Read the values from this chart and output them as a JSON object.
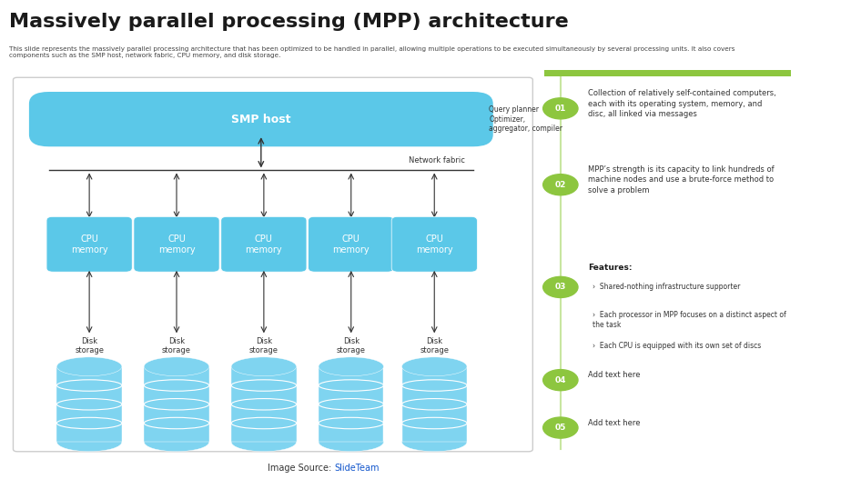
{
  "title": "Massively parallel processing (MPP) architecture",
  "subtitle": "This slide represents the massively parallel processing architecture that has been optimized to be handled in parallel, allowing multiple operations to be executed simultaneously by several processing units. It also covers\ncomponents such as the SMP host, network fabric, CPU memory, and disk storage.",
  "bg_color": "#ffffff",
  "diagram_border": "#cccccc",
  "smp_color": "#5bc8e8",
  "cpu_color": "#5bc8e8",
  "disk_color": "#7fd4f0",
  "arrow_color": "#333333",
  "title_color": "#1a1a1a",
  "subtitle_color": "#444444",
  "right_panel_line_color": "#8dc63f",
  "circle_bg": "#8dc63f",
  "circle_text_color": "#ffffff",
  "items": [
    {
      "num": "01",
      "text": "Collection of relatively self-contained computers,\neach with its operating system, memory, and\ndisc, all linked via messages"
    },
    {
      "num": "02",
      "text": "MPP’s strength is its capacity to link hundreds of\nmachine nodes and use a brute-force method to\nsolve a problem"
    },
    {
      "num": "03",
      "text_bold": "Features:",
      "bullets": [
        "Shared-nothing infrastructure supporter",
        "Each processor in MPP focuses on a distinct aspect of\nthe task",
        "Each CPU is equipped with its own set of discs"
      ]
    },
    {
      "num": "04",
      "text": "Add text here"
    },
    {
      "num": "05",
      "text": "Add text here"
    }
  ],
  "query_planner_text": "Query planner\nOptimizer,\naggregator, compiler",
  "network_fabric_text": "Network fabric",
  "image_source_text": "Image Source: ",
  "image_source_link": "SlideTeam",
  "image_source_url_color": "#1155cc"
}
